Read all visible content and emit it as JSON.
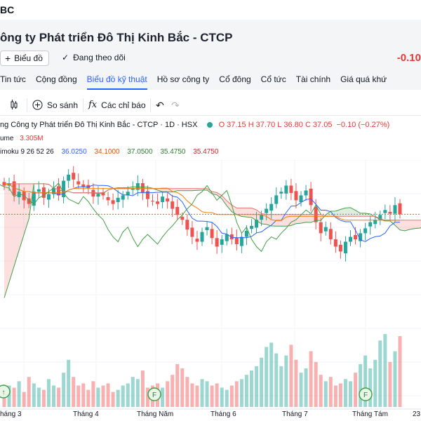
{
  "header": {
    "ticker": "BC",
    "company_name": "ông ty Phát triển Đô Thị Kinh Bắc - CTCP",
    "chart_button_label": "Biểu đồ",
    "follow_label": "Đang theo dõi",
    "change": "-0.10"
  },
  "tabs": [
    {
      "label": "Tin tức"
    },
    {
      "label": "Cộng đồng"
    },
    {
      "label": "Biểu đồ kỹ thuật",
      "active": true
    },
    {
      "label": "Hồ sơ công ty"
    },
    {
      "label": "Cổ đông"
    },
    {
      "label": "Cổ tức"
    },
    {
      "label": "Tài chính"
    },
    {
      "label": "Giá quá khứ"
    }
  ],
  "toolbar": {
    "compare_label": "So sánh",
    "indicators_label": "Các chỉ báo"
  },
  "legend": {
    "title": "ng Công ty Phát triển Đô Thị Kinh Bắc - CTCP · 1D · HSX",
    "open": "37.15",
    "high": "37.70",
    "low": "36.80",
    "close": "37.05",
    "change": "−0.10 (−0.27%)",
    "volume_label": "ume",
    "volume_value": "3.305M",
    "ichimoku_label": "imoku 9 26 52 26",
    "ichimoku_values": [
      "36.0250",
      "34.1000",
      "37.0500",
      "35.4750",
      "35.4750"
    ]
  },
  "x_axis_labels": [
    "háng 3",
    "Tháng 4",
    "Tháng Năm",
    "Tháng 6",
    "Tháng 7",
    "Tháng Tám",
    "23"
  ],
  "colors": {
    "up": "#26a69a",
    "down": "#ef5350",
    "conversion": "#2962ff",
    "base": "#f57c00",
    "lagging": "#43a047",
    "span_b": "#e57373",
    "accent": "#2962ff"
  },
  "chart_data": {
    "type": "candlestick",
    "series": [
      {
        "name": "close",
        "values": [
          39.4,
          39.6,
          38.6,
          38.9,
          38.2,
          37.9,
          38.9,
          39.1,
          38.4,
          38.7,
          39.2,
          38.6,
          39.8,
          40.3,
          39.9,
          39.5,
          39.3,
          39.2,
          38.5,
          38.7,
          38.6,
          38.2,
          37.9,
          38.4,
          38.6,
          38.9,
          39.2,
          39.6,
          38.8,
          38.3,
          38.1,
          37.9,
          38.5,
          38.1,
          37.5,
          37.0,
          36.6,
          35.8,
          35.2,
          34.8,
          35.6,
          36.0,
          35.1,
          34.4,
          35.0,
          35.4,
          35.0,
          34.6,
          35.2,
          35.7,
          36.1,
          36.6,
          37.0,
          37.5,
          37.9,
          38.6,
          38.9,
          39.4,
          38.8,
          38.2,
          38.6,
          39.0,
          37.8,
          36.4,
          35.5,
          36.0,
          35.0,
          34.4,
          34.0,
          34.8,
          35.2,
          35.0,
          35.5,
          35.9,
          36.4,
          36.6,
          37.0,
          37.4,
          37.1,
          37.8,
          37.05
        ]
      },
      {
        "name": "volume",
        "values": [
          0.8,
          1.0,
          0.9,
          1.2,
          0.7,
          1.4,
          1.1,
          0.9,
          0.8,
          1.3,
          1.0,
          0.9,
          1.6,
          2.2,
          1.4,
          1.0,
          1.1,
          0.8,
          1.2,
          0.9,
          1.0,
          1.1,
          0.7,
          0.8,
          1.0,
          1.1,
          1.4,
          1.3,
          1.7,
          0.9,
          1.0,
          1.1,
          0.9,
          1.2,
          1.5,
          2.0,
          1.8,
          1.4,
          1.1,
          1.0,
          1.3,
          1.2,
          1.0,
          1.1,
          0.9,
          0.8,
          1.0,
          1.2,
          1.3,
          1.5,
          1.7,
          1.9,
          2.3,
          2.8,
          3.0,
          2.5,
          1.9,
          2.4,
          2.9,
          2.2,
          1.6,
          1.8,
          2.6,
          2.1,
          1.5,
          1.2,
          1.4,
          1.0,
          1.1,
          1.3,
          1.2,
          1.6,
          2.0,
          2.4,
          1.8,
          2.2,
          3.1,
          3.4,
          2.1,
          2.6,
          3.305
        ]
      }
    ]
  }
}
